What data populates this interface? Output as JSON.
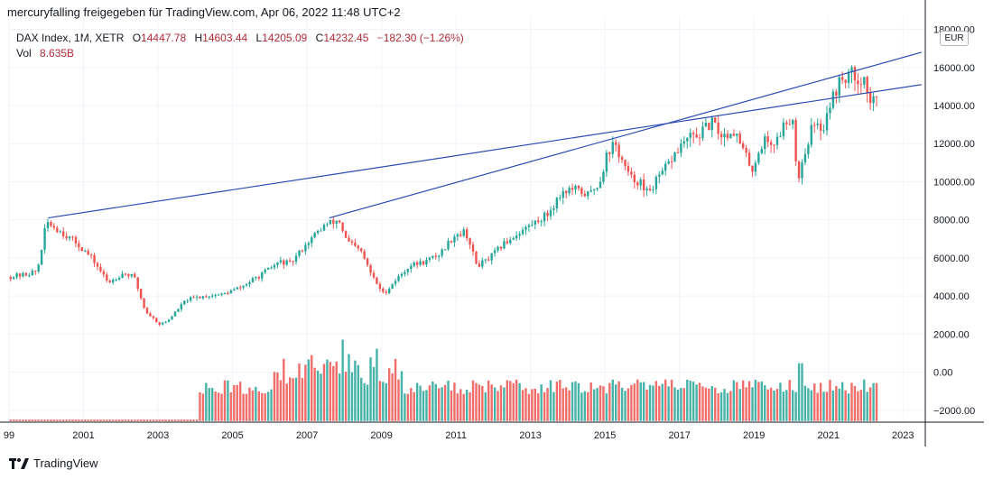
{
  "header": {
    "text": "mercuryfalling freigegeben für TradingView.com, Apr 06, 2022 11:48 UTC+2"
  },
  "legend": {
    "symbol": "DAX Index, 1M, XETR",
    "open_label": "O",
    "open": "14447.78",
    "high_label": "H",
    "high": "14603.44",
    "low_label": "L",
    "low": "14205.09",
    "close_label": "C",
    "close": "14232.45",
    "change": "−182.30 (−1.26%)",
    "vol_label": "Vol",
    "vol": "8.635B"
  },
  "currency": "EUR",
  "footer": {
    "brand": "TradingView"
  },
  "colors": {
    "up": "#26a69a",
    "down": "#ef5350",
    "volUp": "#26a69a",
    "volDown": "#ef5350",
    "trend": "#2a4bb4"
  },
  "chart_data": {
    "type": "candlestick",
    "title": "DAX Index, 1M, XETR",
    "currency": "EUR",
    "ylim": [
      -2600,
      18000
    ],
    "yticks": [
      -2000,
      0,
      2000,
      4000,
      6000,
      8000,
      10000,
      12000,
      14000,
      16000,
      18000
    ],
    "ytick_labels": [
      "−2000.00",
      "0.00",
      "2000.00",
      "4000.00",
      "6000.00",
      "8000.00",
      "10000.00",
      "12000.00",
      "14000.00",
      "16000.00",
      "18000.00"
    ],
    "xlim": [
      1999.0,
      2023.6
    ],
    "xtick_labels": [
      "99",
      "2001",
      "2003",
      "2005",
      "2007",
      "2009",
      "2011",
      "2013",
      "2015",
      "2017",
      "2019",
      "2021",
      "2023"
    ],
    "xtick_years": [
      1999,
      2001,
      2003,
      2005,
      2007,
      2009,
      2011,
      2013,
      2015,
      2017,
      2019,
      2021,
      2023
    ],
    "price_path": [
      [
        1999.0,
        5000
      ],
      [
        1999.4,
        5100
      ],
      [
        1999.8,
        5300
      ],
      [
        2000.05,
        7900
      ],
      [
        2000.2,
        7700
      ],
      [
        2000.5,
        7300
      ],
      [
        2000.9,
        6700
      ],
      [
        2001.3,
        5900
      ],
      [
        2001.7,
        4700
      ],
      [
        2002.1,
        5200
      ],
      [
        2002.4,
        5000
      ],
      [
        2002.7,
        3200
      ],
      [
        2003.1,
        2500
      ],
      [
        2003.3,
        2700
      ],
      [
        2003.8,
        3800
      ],
      [
        2004.3,
        4000
      ],
      [
        2004.8,
        4100
      ],
      [
        2005.3,
        4500
      ],
      [
        2005.8,
        5100
      ],
      [
        2006.3,
        5800
      ],
      [
        2006.6,
        5700
      ],
      [
        2007.0,
        6700
      ],
      [
        2007.5,
        7700
      ],
      [
        2007.9,
        8000
      ],
      [
        2008.1,
        6900
      ],
      [
        2008.5,
        6300
      ],
      [
        2008.8,
        5000
      ],
      [
        2009.1,
        4100
      ],
      [
        2009.4,
        4800
      ],
      [
        2009.8,
        5600
      ],
      [
        2010.2,
        5800
      ],
      [
        2010.6,
        6200
      ],
      [
        2011.0,
        7200
      ],
      [
        2011.3,
        7400
      ],
      [
        2011.6,
        5600
      ],
      [
        2011.9,
        5900
      ],
      [
        2012.3,
        6700
      ],
      [
        2012.7,
        7300
      ],
      [
        2013.1,
        7800
      ],
      [
        2013.5,
        8300
      ],
      [
        2013.9,
        9500
      ],
      [
        2014.2,
        9600
      ],
      [
        2014.6,
        9300
      ],
      [
        2014.9,
        10000
      ],
      [
        2015.1,
        11500
      ],
      [
        2015.3,
        12000
      ],
      [
        2015.7,
        10200
      ],
      [
        2016.0,
        10000
      ],
      [
        2016.1,
        9300
      ],
      [
        2016.5,
        10200
      ],
      [
        2016.9,
        11400
      ],
      [
        2017.2,
        12200
      ],
      [
        2017.6,
        12500
      ],
      [
        2017.9,
        13100
      ],
      [
        2018.2,
        12400
      ],
      [
        2018.5,
        12700
      ],
      [
        2018.9,
        11000
      ],
      [
        2019.0,
        10700
      ],
      [
        2019.3,
        12200
      ],
      [
        2019.6,
        12000
      ],
      [
        2019.9,
        13200
      ],
      [
        2020.1,
        13400
      ],
      [
        2020.2,
        9900
      ],
      [
        2020.3,
        10800
      ],
      [
        2020.6,
        12900
      ],
      [
        2020.9,
        12800
      ],
      [
        2021.0,
        13700
      ],
      [
        2021.3,
        15100
      ],
      [
        2021.6,
        15700
      ],
      [
        2021.9,
        15400
      ],
      [
        2022.0,
        15500
      ],
      [
        2022.1,
        14400
      ],
      [
        2022.2,
        14200
      ]
    ],
    "candle_bodies_note": "monthly OHLC candles, green up / red down",
    "trendlines": [
      {
        "name": "trendline-from-2000-peak",
        "x": [
          2000.05,
          2023.5
        ],
        "y": [
          8100,
          15100
        ]
      },
      {
        "name": "trendline-from-2007-peak",
        "x": [
          2007.6,
          2023.5
        ],
        "y": [
          8100,
          16800
        ]
      }
    ],
    "volume_start": 2004.0,
    "volume_base_level": -2000,
    "volume_range": [
      0,
      4500
    ],
    "volume_spikes": [
      [
        2007.9,
        4500
      ],
      [
        2008.8,
        4000
      ],
      [
        2008.1,
        3700
      ],
      [
        2007.5,
        3400
      ],
      [
        2020.2,
        3200
      ],
      [
        2022.2,
        2100
      ]
    ]
  }
}
